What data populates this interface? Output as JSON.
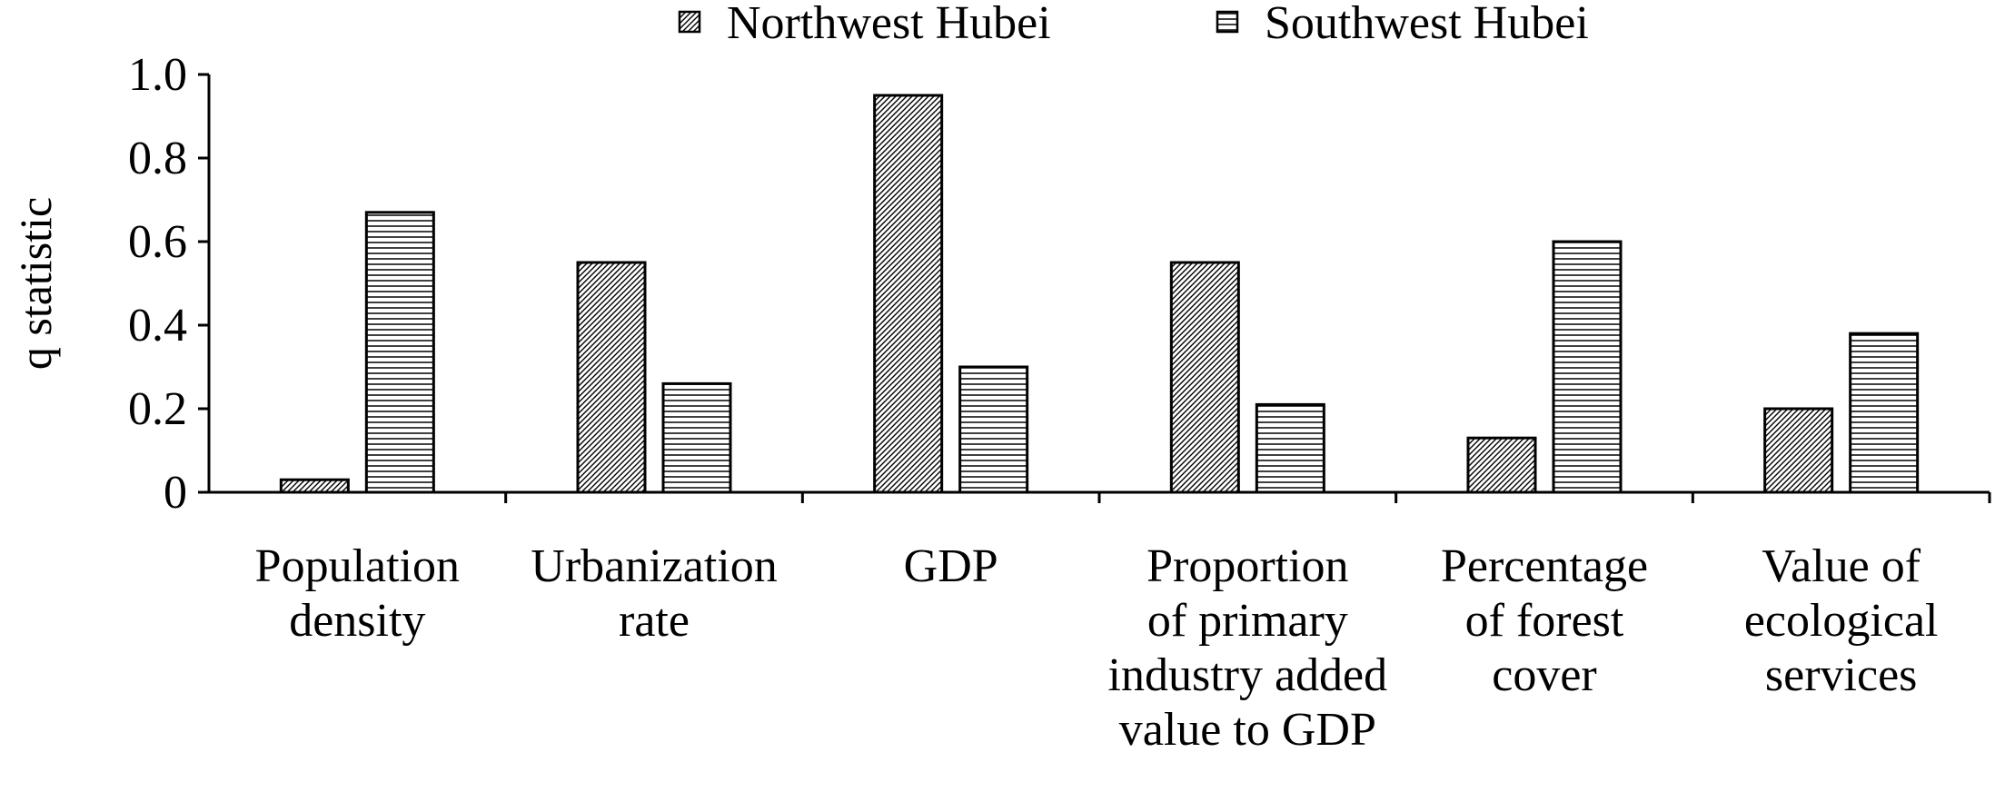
{
  "chart_data": {
    "type": "bar",
    "title": "",
    "xlabel": "",
    "ylabel": "q statistic",
    "ylim": [
      0,
      1.0
    ],
    "yticks": [
      {
        "value": 0,
        "label": "0"
      },
      {
        "value": 0.2,
        "label": "0.2"
      },
      {
        "value": 0.4,
        "label": "0.4"
      },
      {
        "value": 0.6,
        "label": "0.6"
      },
      {
        "value": 0.8,
        "label": "0.8"
      },
      {
        "value": 1.0,
        "label": "1.0"
      }
    ],
    "grid": false,
    "legend_position": "top",
    "categories": [
      [
        "Population",
        "density"
      ],
      [
        "Urbanization",
        "rate"
      ],
      [
        "GDP"
      ],
      [
        "Proportion",
        "of primary",
        "industry added",
        "value to GDP"
      ],
      [
        "Percentage",
        "of forest",
        "cover"
      ],
      [
        "Value of",
        "ecological",
        "services"
      ]
    ],
    "series": [
      {
        "name": "Northwest Hubei",
        "pattern": "diagonal-hatch",
        "values": [
          0.03,
          0.55,
          0.95,
          0.55,
          0.13,
          0.2
        ]
      },
      {
        "name": "Southwest Hubei",
        "pattern": "horizontal-lines",
        "values": [
          0.67,
          0.26,
          0.3,
          0.21,
          0.6,
          0.38
        ]
      }
    ],
    "colors": {
      "stroke": "#000000",
      "background": "#ffffff"
    }
  }
}
